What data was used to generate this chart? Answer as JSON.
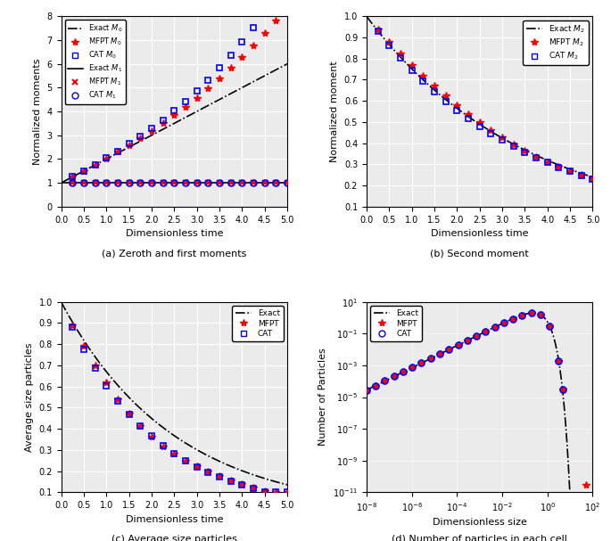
{
  "subplot_a": {
    "title": "(a) Zeroth and first moments",
    "xlabel": "Dimensionless time",
    "ylabel": "Normalized moments",
    "xlim": [
      0,
      5
    ],
    "ylim": [
      0,
      8
    ],
    "yticks": [
      0,
      1,
      2,
      3,
      4,
      5,
      6,
      7,
      8
    ],
    "xticks": [
      0,
      0.5,
      1.0,
      1.5,
      2.0,
      2.5,
      3.0,
      3.5,
      4.0,
      4.5,
      5.0
    ]
  },
  "subplot_b": {
    "title": "(b) Second moment",
    "xlabel": "Dimensionless time",
    "ylabel": "Normalized moment",
    "xlim": [
      0,
      5
    ],
    "ylim": [
      0.1,
      1.0
    ],
    "xticks": [
      0,
      0.5,
      1.0,
      1.5,
      2.0,
      2.5,
      3.0,
      3.5,
      4.0,
      4.5,
      5.0
    ]
  },
  "subplot_c": {
    "title": "(c) Average size particles",
    "xlabel": "Dimensionless time",
    "ylabel": "Average size particles",
    "xlim": [
      0,
      5
    ],
    "ylim": [
      0.1,
      1.0
    ],
    "xticks": [
      0,
      0.5,
      1.0,
      1.5,
      2.0,
      2.5,
      3.0,
      3.5,
      4.0,
      4.5,
      5.0
    ]
  },
  "subplot_d": {
    "title": "(d) Number of particles in each cell",
    "xlabel": "Dimensionless size",
    "ylabel": "Number of Particles",
    "xlim_log": [
      -8,
      2
    ],
    "ylim_log": [
      -11,
      1
    ]
  },
  "colors": {
    "exact": "#000000",
    "mfpt": "#ff0000",
    "cat": "#0000ff"
  },
  "bg_color": "#ebebeb",
  "grid_color": "#ffffff"
}
